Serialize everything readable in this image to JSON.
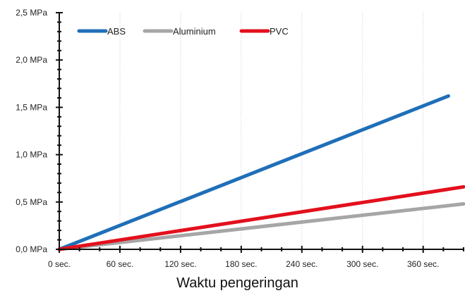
{
  "chart_data": {
    "type": "line",
    "xlabel": "Waktu pengeringan",
    "ylabel": "",
    "xlim": [
      0,
      400
    ],
    "ylim": [
      0,
      2.5
    ],
    "grid": true,
    "legend_position": "top-left",
    "x_ticks": [
      {
        "value": 0,
        "label": "0 sec."
      },
      {
        "value": 60,
        "label": "60 sec."
      },
      {
        "value": 120,
        "label": "120 sec."
      },
      {
        "value": 180,
        "label": "180 sec."
      },
      {
        "value": 240,
        "label": "240 sec."
      },
      {
        "value": 300,
        "label": "300 sec."
      },
      {
        "value": 360,
        "label": "360 sec."
      }
    ],
    "y_ticks": [
      {
        "value": 0,
        "label": "0,0 MPa"
      },
      {
        "value": 0.5,
        "label": "0,5 MPa"
      },
      {
        "value": 1.0,
        "label": "1,0 MPa"
      },
      {
        "value": 1.5,
        "label": "1,5 MPa"
      },
      {
        "value": 2.0,
        "label": "2,0 MPa"
      },
      {
        "value": 2.5,
        "label": "2,5 MPa"
      }
    ],
    "series": [
      {
        "name": "ABS",
        "color": "#1f6fb8",
        "points": [
          [
            0,
            0
          ],
          [
            385,
            1.62
          ]
        ]
      },
      {
        "name": "Aluminium",
        "color": "#a6a6a6",
        "points": [
          [
            0,
            0
          ],
          [
            400,
            0.48
          ]
        ]
      },
      {
        "name": "PVC",
        "color": "#e3101d",
        "points": [
          [
            0,
            0
          ],
          [
            400,
            0.66
          ]
        ]
      }
    ]
  }
}
